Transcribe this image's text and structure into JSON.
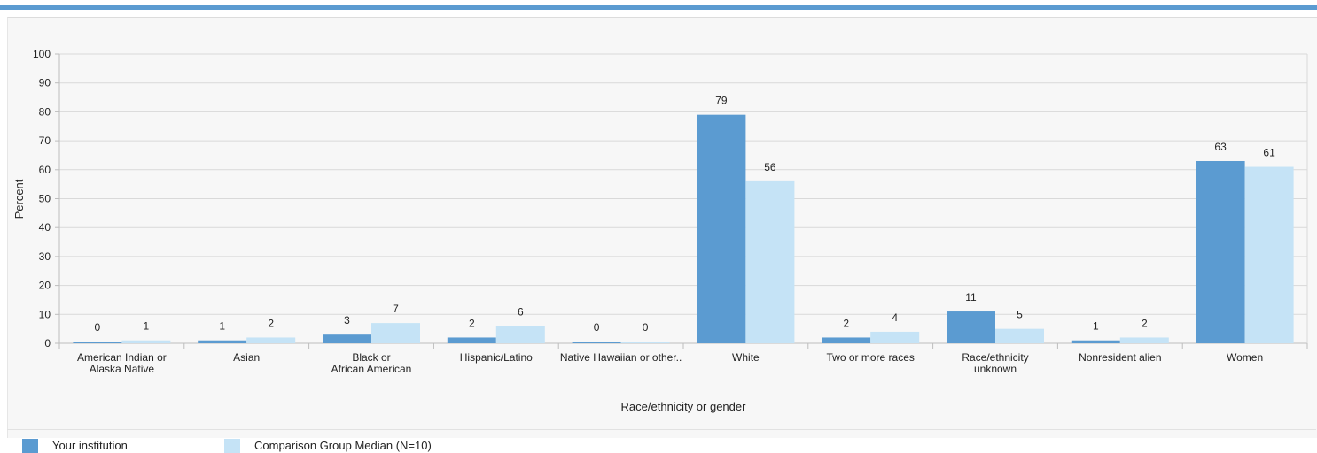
{
  "chart_data": {
    "type": "bar",
    "categories": [
      [
        "American Indian or",
        "Alaska Native"
      ],
      [
        "Asian"
      ],
      [
        "Black or",
        "African American"
      ],
      [
        "Hispanic/Latino"
      ],
      [
        "Native Hawaiian  or other.."
      ],
      [
        "White"
      ],
      [
        "Two or more races"
      ],
      [
        "Race/ethnicity",
        "unknown"
      ],
      [
        "Nonresident alien"
      ],
      [
        "Women"
      ]
    ],
    "series": [
      {
        "name": "Your institution",
        "color": "#5b9bd1",
        "values": [
          0,
          1,
          3,
          2,
          0,
          79,
          2,
          11,
          1,
          63
        ]
      },
      {
        "name": "Comparison Group Median (N=10)",
        "color": "#c5e3f6",
        "values": [
          1,
          2,
          7,
          6,
          0,
          56,
          4,
          5,
          2,
          61
        ]
      }
    ],
    "data_labels": [
      [
        "0",
        "1",
        "3",
        "2",
        "0",
        "79",
        "2",
        "11",
        "1",
        "63"
      ],
      [
        "1",
        "2",
        "7",
        "6",
        "0",
        "56",
        "4",
        "5",
        "2",
        "61"
      ]
    ],
    "yticks": [
      "0",
      "10",
      "20",
      "30",
      "40",
      "50",
      "60",
      "70",
      "80",
      "90",
      "100"
    ],
    "ylim": [
      0,
      100
    ],
    "xlabel": "Race/ethnicity or gender",
    "ylabel": "Percent",
    "grid": true,
    "legend_position": "bottom"
  },
  "accent_color": "#5b9bd1"
}
